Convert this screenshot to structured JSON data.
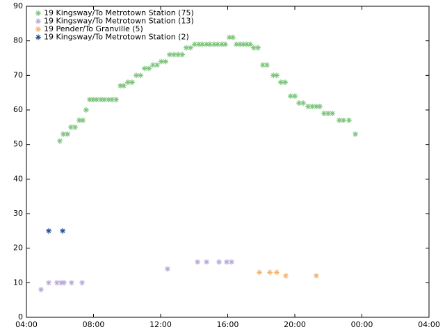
{
  "chart_data": {
    "type": "scatter",
    "series": [
      {
        "name": "19 Kingsway/To Metrotown Station (75)",
        "color": "#7cc47c",
        "x": [
          5.99,
          6.2,
          6.45,
          6.65,
          6.9,
          7.15,
          7.36,
          7.56,
          7.77,
          7.98,
          8.19,
          8.44,
          8.64,
          8.89,
          9.1,
          9.35,
          9.6,
          9.8,
          10.05,
          10.3,
          10.55,
          10.8,
          11.05,
          11.3,
          11.54,
          11.79,
          12.04,
          12.29,
          12.54,
          12.79,
          13.04,
          13.29,
          13.53,
          13.78,
          14.03,
          14.28,
          14.49,
          14.74,
          14.94,
          15.19,
          15.4,
          15.65,
          15.86,
          16.1,
          16.31,
          16.52,
          16.73,
          16.93,
          17.14,
          17.35,
          17.55,
          17.8,
          18.09,
          18.34,
          18.72,
          18.92,
          19.17,
          19.42,
          19.75,
          20.0,
          20.25,
          20.5,
          20.79,
          21.04,
          21.28,
          21.49,
          21.74,
          21.99,
          22.24,
          22.65,
          22.9,
          23.23,
          23.61
        ],
        "values": [
          51,
          53,
          53,
          55,
          55,
          57,
          57,
          60,
          63,
          63,
          63,
          63,
          63,
          63,
          63,
          63,
          67,
          67,
          68,
          68,
          70,
          70,
          72,
          72,
          73,
          73,
          74,
          74,
          76,
          76,
          76,
          76,
          78,
          78,
          79,
          79,
          79,
          79,
          79,
          79,
          79,
          79,
          79,
          81,
          81,
          79,
          79,
          79,
          79,
          79,
          78,
          78,
          73,
          73,
          70,
          70,
          68,
          68,
          64,
          64,
          62,
          62,
          61,
          61,
          61,
          61,
          59,
          59,
          59,
          57,
          57,
          57,
          53
        ]
      },
      {
        "name": "19 Kingsway/To Metrotown Station (13)",
        "color": "#b9a7d9",
        "x": [
          4.87,
          5.33,
          5.82,
          6.07,
          6.24,
          6.69,
          7.32,
          12.41,
          14.2,
          14.74,
          15.48,
          15.94,
          16.23
        ],
        "values": [
          8,
          10,
          10,
          10,
          10,
          10,
          10,
          14,
          16,
          16,
          16,
          16,
          16
        ]
      },
      {
        "name": "19 Pender/To Granville (5)",
        "color": "#f5b36a",
        "x": [
          17.89,
          18.51,
          18.92,
          19.46,
          21.28
        ],
        "values": [
          13,
          13,
          13,
          12,
          12
        ]
      },
      {
        "name": "19 Kingsway/To Metrotown Station (2)",
        "color": "#1f4e8c",
        "x": [
          5.33,
          6.16
        ],
        "values": [
          25,
          25
        ]
      }
    ],
    "xlim": [
      4,
      28
    ],
    "xticks": [
      {
        "value": 4,
        "label": "04:00"
      },
      {
        "value": 8,
        "label": "08:00"
      },
      {
        "value": 12,
        "label": "12:00"
      },
      {
        "value": 16,
        "label": "16:00"
      },
      {
        "value": 20,
        "label": "20:00"
      },
      {
        "value": 24,
        "label": "00:00"
      },
      {
        "value": 28,
        "label": "04:00"
      }
    ],
    "ylim": [
      0,
      90
    ],
    "yticks": [
      0,
      10,
      20,
      30,
      40,
      50,
      60,
      70,
      80,
      90
    ],
    "legend": "upper-left"
  }
}
